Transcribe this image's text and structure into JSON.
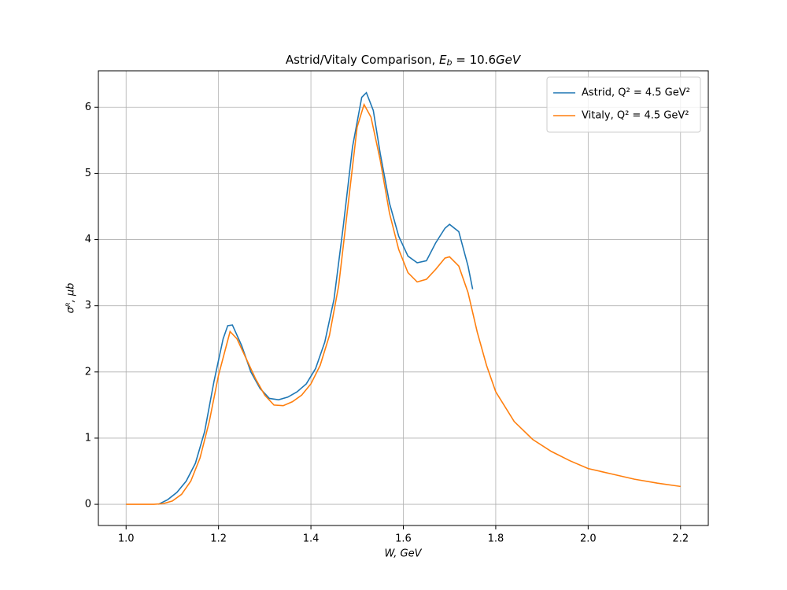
{
  "chart_data": {
    "type": "line",
    "title": [
      "Astrid/Vitaly Comparison, ",
      "E",
      "b",
      " = 10.6",
      "GeV"
    ],
    "xlabel": "W, GeV",
    "ylabel": "σᴿ, μb",
    "xlim": [
      0.94,
      2.26
    ],
    "ylim": [
      -0.32,
      6.55
    ],
    "xticks": [
      {
        "value": 1,
        "label": "1.0"
      },
      1.2,
      1.4,
      1.6,
      1.8,
      {
        "value": 2,
        "label": "2.0"
      },
      2.2
    ],
    "yticks": [
      0,
      1,
      2,
      3,
      4,
      5,
      6
    ],
    "grid": true,
    "legend": "upper right",
    "series": [
      {
        "name": "Astrid, Q² = 4.5 GeV²",
        "color": "#1f77b4",
        "x": [
          1.07,
          1.09,
          1.11,
          1.13,
          1.15,
          1.17,
          1.19,
          1.21,
          1.22,
          1.23,
          1.25,
          1.27,
          1.29,
          1.31,
          1.33,
          1.35,
          1.37,
          1.39,
          1.41,
          1.43,
          1.45,
          1.47,
          1.49,
          1.51,
          1.52,
          1.535,
          1.55,
          1.57,
          1.59,
          1.61,
          1.63,
          1.65,
          1.67,
          1.69,
          1.7,
          1.72,
          1.74,
          1.75
        ],
        "values": [
          0,
          0.07,
          0.18,
          0.35,
          0.62,
          1.1,
          1.85,
          2.5,
          2.7,
          2.71,
          2.4,
          2.0,
          1.75,
          1.6,
          1.58,
          1.62,
          1.7,
          1.82,
          2.05,
          2.45,
          3.1,
          4.2,
          5.4,
          6.15,
          6.22,
          5.95,
          5.3,
          4.55,
          4.05,
          3.75,
          3.65,
          3.68,
          3.95,
          4.17,
          4.23,
          4.12,
          3.6,
          3.25
        ]
      },
      {
        "name": "Vitaly, Q² = 4.5 GeV²",
        "color": "#ff7f0e",
        "x": [
          1.0,
          1.06,
          1.08,
          1.1,
          1.12,
          1.14,
          1.16,
          1.18,
          1.2,
          1.225,
          1.24,
          1.26,
          1.28,
          1.3,
          1.32,
          1.34,
          1.36,
          1.38,
          1.4,
          1.42,
          1.44,
          1.46,
          1.48,
          1.5,
          1.515,
          1.53,
          1.55,
          1.57,
          1.59,
          1.61,
          1.63,
          1.65,
          1.67,
          1.69,
          1.7,
          1.72,
          1.74,
          1.76,
          1.78,
          1.8,
          1.84,
          1.88,
          1.92,
          1.96,
          2.0,
          2.05,
          2.1,
          2.15,
          2.2
        ],
        "values": [
          0,
          0,
          0.01,
          0.05,
          0.15,
          0.35,
          0.7,
          1.25,
          1.95,
          2.61,
          2.5,
          2.2,
          1.9,
          1.65,
          1.5,
          1.49,
          1.55,
          1.65,
          1.82,
          2.1,
          2.55,
          3.3,
          4.5,
          5.7,
          6.04,
          5.85,
          5.2,
          4.4,
          3.85,
          3.5,
          3.36,
          3.4,
          3.55,
          3.72,
          3.74,
          3.6,
          3.2,
          2.6,
          2.1,
          1.7,
          1.25,
          0.98,
          0.8,
          0.66,
          0.54,
          0.46,
          0.38,
          0.32,
          0.27
        ]
      }
    ]
  }
}
